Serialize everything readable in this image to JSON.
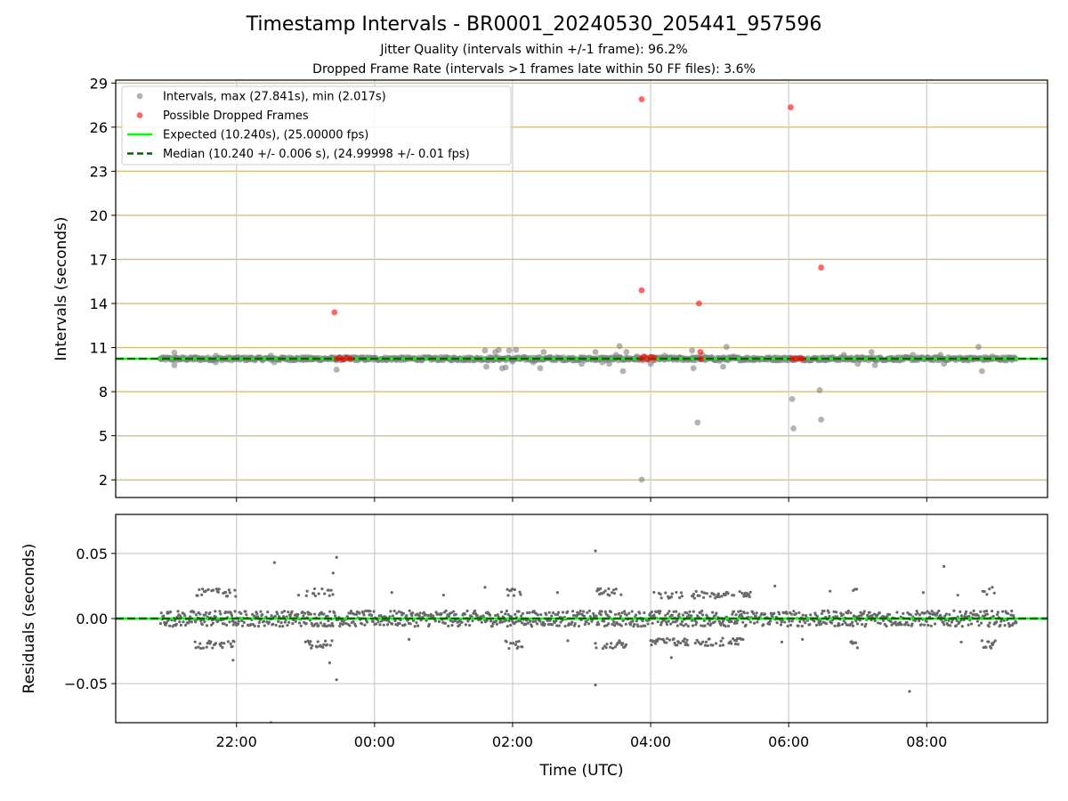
{
  "chart_data": [
    {
      "type": "scatter",
      "title": "Timestamp Intervals - BR0001_20240530_205441_957596",
      "subtitle_lines": [
        "Jitter Quality (intervals within +/-1 frame): 96.2%",
        "Dropped Frame Rate (intervals >1 frames late within 50 FF files): 3.6%"
      ],
      "xlabel": "",
      "ylabel": "Intervals (seconds)",
      "x_unit": "hours since 00:00 UTC (day of 2024-05-30 to 2024-05-31)",
      "xlim": [
        -3.75,
        9.75
      ],
      "ylim": [
        0.8,
        29.2
      ],
      "yticks": [
        2,
        5,
        8,
        11,
        14,
        17,
        20,
        23,
        26,
        29
      ],
      "xticks": [
        {
          "value": -2,
          "label": "22:00"
        },
        {
          "value": 0,
          "label": "00:00"
        },
        {
          "value": 2,
          "label": "02:00"
        },
        {
          "value": 4,
          "label": "04:00"
        },
        {
          "value": 6,
          "label": "06:00"
        },
        {
          "value": 8,
          "label": "08:00"
        }
      ],
      "grid": true,
      "legend_placement": "top-left",
      "legend": [
        {
          "label": "Intervals, max (27.841s), min (2.017s)",
          "marker": "dot",
          "color": "#808080"
        },
        {
          "label": "Possible Dropped Frames",
          "marker": "dot",
          "color": "#ff0000"
        },
        {
          "label": "Expected (10.240s), (25.00000 fps)",
          "marker": "line",
          "color": "#00ff00"
        },
        {
          "label": "Median (10.240 +/- 0.006 s), (24.99998 +/- 0.01 fps)",
          "marker": "dashed",
          "color": "#006400"
        }
      ],
      "expected_value": 10.24,
      "median_value": 10.24,
      "baseline_x_range": [
        -3.1,
        9.3
      ],
      "series": [
        {
          "name": "Intervals, max (27.841s), min (2.017s)",
          "color": "#808080",
          "points": [
            [
              -3.1,
              10.24
            ],
            [
              -2.9,
              10.65
            ],
            [
              -2.9,
              9.8
            ],
            [
              -2.6,
              10.35
            ],
            [
              -2.3,
              10.45
            ],
            [
              -2.3,
              10.0
            ],
            [
              -2.0,
              10.3
            ],
            [
              -1.8,
              10.3
            ],
            [
              -1.5,
              10.45
            ],
            [
              -1.45,
              10.0
            ],
            [
              -1.2,
              10.3
            ],
            [
              -0.9,
              10.2
            ],
            [
              -0.55,
              9.5
            ],
            [
              -0.3,
              10.35
            ],
            [
              0.3,
              10.3
            ],
            [
              0.8,
              10.3
            ],
            [
              1.3,
              10.3
            ],
            [
              1.6,
              10.8
            ],
            [
              1.62,
              9.7
            ],
            [
              1.75,
              10.7
            ],
            [
              1.8,
              10.85
            ],
            [
              1.85,
              9.6
            ],
            [
              1.9,
              9.65
            ],
            [
              1.95,
              10.8
            ],
            [
              2.0,
              10.05
            ],
            [
              2.05,
              10.85
            ],
            [
              2.3,
              10.0
            ],
            [
              2.4,
              9.6
            ],
            [
              2.45,
              10.7
            ],
            [
              2.55,
              10.35
            ],
            [
              2.8,
              10.3
            ],
            [
              3.0,
              9.9
            ],
            [
              3.2,
              10.7
            ],
            [
              3.3,
              10.0
            ],
            [
              3.4,
              9.9
            ],
            [
              3.5,
              10.5
            ],
            [
              3.55,
              11.1
            ],
            [
              3.6,
              9.4
            ],
            [
              3.65,
              10.7
            ],
            [
              3.8,
              10.4
            ],
            [
              3.87,
              2.02
            ],
            [
              4.0,
              9.9
            ],
            [
              4.2,
              10.45
            ],
            [
              4.4,
              10.3
            ],
            [
              4.6,
              10.8
            ],
            [
              4.62,
              9.6
            ],
            [
              4.68,
              5.9
            ],
            [
              4.75,
              10.5
            ],
            [
              5.0,
              10.1
            ],
            [
              5.05,
              9.7
            ],
            [
              5.1,
              11.05
            ],
            [
              5.2,
              10.4
            ],
            [
              5.5,
              10.3
            ],
            [
              5.8,
              10.3
            ],
            [
              6.0,
              10.3
            ],
            [
              6.05,
              7.5
            ],
            [
              6.07,
              5.5
            ],
            [
              6.45,
              8.1
            ],
            [
              6.47,
              6.1
            ],
            [
              6.6,
              10.3
            ],
            [
              6.8,
              10.5
            ],
            [
              7.0,
              9.9
            ],
            [
              7.2,
              10.7
            ],
            [
              7.25,
              9.8
            ],
            [
              7.5,
              10.3
            ],
            [
              7.8,
              10.5
            ],
            [
              8.0,
              10.3
            ],
            [
              8.2,
              10.5
            ],
            [
              8.25,
              9.9
            ],
            [
              8.6,
              10.3
            ],
            [
              8.75,
              11.05
            ],
            [
              8.8,
              9.4
            ],
            [
              8.95,
              10.4
            ],
            [
              9.2,
              10.3
            ]
          ]
        },
        {
          "name": "Possible Dropped Frames",
          "color": "#ff0000",
          "points": [
            [
              -0.58,
              13.4
            ],
            [
              -0.55,
              10.25
            ],
            [
              -0.5,
              10.3
            ],
            [
              -0.45,
              10.2
            ],
            [
              -0.4,
              10.3
            ],
            [
              -0.35,
              10.24
            ],
            [
              3.87,
              27.9
            ],
            [
              3.87,
              14.9
            ],
            [
              3.86,
              10.24
            ],
            [
              3.9,
              10.4
            ],
            [
              3.95,
              10.2
            ],
            [
              4.0,
              10.35
            ],
            [
              4.05,
              10.3
            ],
            [
              4.7,
              14.0
            ],
            [
              4.72,
              10.7
            ],
            [
              4.73,
              10.24
            ],
            [
              6.03,
              27.35
            ],
            [
              6.05,
              10.24
            ],
            [
              6.1,
              10.24
            ],
            [
              6.15,
              10.24
            ],
            [
              6.2,
              10.24
            ],
            [
              6.47,
              16.45
            ]
          ]
        }
      ]
    },
    {
      "type": "scatter",
      "title": "",
      "xlabel": "Time (UTC)",
      "ylabel": "Residuals (seconds)",
      "x_unit": "hours since 00:00 UTC (day of 2024-05-30 to 2024-05-31)",
      "xlim": [
        -3.75,
        9.75
      ],
      "ylim": [
        -0.08,
        0.08
      ],
      "yticks": [
        -0.05,
        0.0,
        0.05
      ],
      "ytick_labels": [
        "−0.05",
        "0.00",
        "0.05"
      ],
      "xticks": [
        {
          "value": -2,
          "label": "22:00"
        },
        {
          "value": 0,
          "label": "00:00"
        },
        {
          "value": 2,
          "label": "02:00"
        },
        {
          "value": 4,
          "label": "04:00"
        },
        {
          "value": 6,
          "label": "06:00"
        },
        {
          "value": 8,
          "label": "08:00"
        }
      ],
      "grid": true,
      "zero_line_colors": [
        "#00ff00",
        "#006400"
      ],
      "residual_x_range": [
        -3.1,
        9.3
      ],
      "residual_bands": [
        {
          "x": [
            -2.6,
            -2.0
          ],
          "level": 0.02
        },
        {
          "x": [
            -1.0,
            -0.6
          ],
          "level": 0.02
        },
        {
          "x": [
            1.9,
            2.15
          ],
          "level": 0.02
        },
        {
          "x": [
            3.2,
            3.65
          ],
          "level": 0.02
        },
        {
          "x": [
            4.0,
            4.55
          ],
          "level": 0.018
        },
        {
          "x": [
            4.6,
            5.05
          ],
          "level": 0.018
        },
        {
          "x": [
            5.05,
            5.45
          ],
          "level": 0.018
        },
        {
          "x": [
            6.9,
            7.0
          ],
          "level": 0.02
        },
        {
          "x": [
            8.8,
            9.0
          ],
          "level": 0.02
        }
      ],
      "series": [
        {
          "name": "",
          "color": "#696969",
          "points": [
            [
              -1.45,
              0.043
            ],
            [
              -0.55,
              0.047
            ],
            [
              -0.6,
              0.035
            ],
            [
              -0.65,
              -0.034
            ],
            [
              -0.55,
              -0.047
            ],
            [
              -2.05,
              -0.032
            ],
            [
              -1.5,
              -0.08
            ],
            [
              3.2,
              0.052
            ],
            [
              3.2,
              -0.051
            ],
            [
              7.75,
              -0.056
            ],
            [
              8.25,
              0.04
            ],
            [
              8.95,
              0.024
            ],
            [
              1.6,
              0.024
            ],
            [
              2.65,
              0.02
            ],
            [
              4.3,
              -0.03
            ],
            [
              5.8,
              0.025
            ],
            [
              6.6,
              0.021
            ],
            [
              0.25,
              0.02
            ],
            [
              1.0,
              0.018
            ],
            [
              -1.1,
              0.018
            ],
            [
              8.45,
              0.018
            ],
            [
              7.95,
              0.02
            ],
            [
              2.8,
              -0.017
            ],
            [
              0.5,
              -0.016
            ],
            [
              5.9,
              -0.018
            ],
            [
              6.2,
              -0.016
            ],
            [
              8.5,
              -0.018
            ],
            [
              -3.0,
              0.005
            ],
            [
              9.25,
              -0.004
            ]
          ]
        }
      ]
    }
  ]
}
